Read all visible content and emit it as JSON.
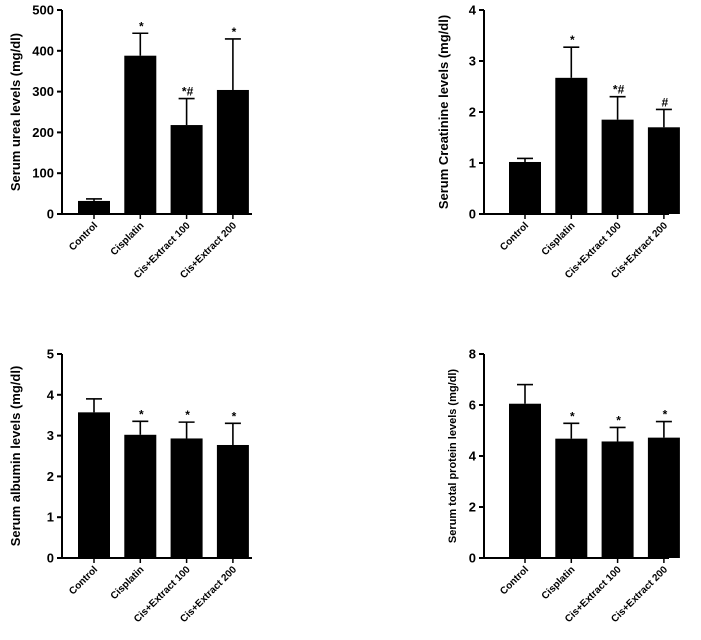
{
  "chart_data": [
    {
      "type": "bar",
      "title": "",
      "xlabel": "",
      "ylabel": "Serum urea levels (mg/dl)",
      "categories": [
        "Control",
        "Cisplatin",
        "Cis+Extract 100",
        "Cis+Extract 200"
      ],
      "values": [
        32,
        388,
        218,
        304
      ],
      "errors": [
        5,
        55,
        65,
        125
      ],
      "annotations": [
        "",
        "*",
        "*#",
        "*"
      ],
      "ylim": [
        0,
        500
      ],
      "yticks": [
        0,
        100,
        200,
        300,
        400,
        500
      ],
      "grid": false
    },
    {
      "type": "bar",
      "title": "",
      "xlabel": "",
      "ylabel": "Serum Creatinine levels (mg/dl)",
      "categories": [
        "Control",
        "Cisplatin",
        "Cis+Extract 100",
        "Cis+Extract 200"
      ],
      "values": [
        1.02,
        2.67,
        1.85,
        1.7
      ],
      "errors": [
        0.07,
        0.6,
        0.45,
        0.35
      ],
      "annotations": [
        "",
        "*",
        "*#",
        "#"
      ],
      "ylim": [
        0,
        4
      ],
      "yticks": [
        0,
        1,
        2,
        3,
        4
      ],
      "grid": false
    },
    {
      "type": "bar",
      "title": "",
      "xlabel": "",
      "ylabel": "Serum albumin levels (mg/dl)",
      "categories": [
        "Control",
        "Cisplatin",
        "Cis+Extract 100",
        "Cis+Extract 200"
      ],
      "values": [
        3.57,
        3.02,
        2.93,
        2.77
      ],
      "errors": [
        0.33,
        0.33,
        0.4,
        0.53
      ],
      "annotations": [
        "",
        "*",
        "*",
        "*"
      ],
      "ylim": [
        0,
        5
      ],
      "yticks": [
        0,
        1,
        2,
        3,
        4,
        5
      ],
      "grid": false
    },
    {
      "type": "bar",
      "title": "",
      "xlabel": "",
      "ylabel": "Serum total protein levels (mg/dl)",
      "categories": [
        "Control",
        "Cisplatin",
        "Cis+Extract 100",
        "Cis+Extract 200"
      ],
      "values": [
        6.05,
        4.68,
        4.57,
        4.72
      ],
      "errors": [
        0.75,
        0.6,
        0.55,
        0.63
      ],
      "annotations": [
        "",
        "*",
        "*",
        "*"
      ],
      "ylim": [
        0,
        8
      ],
      "yticks": [
        0,
        2,
        4,
        6,
        8
      ],
      "grid": false
    }
  ],
  "colors": {
    "bar": "#000000",
    "axis": "#000000"
  }
}
